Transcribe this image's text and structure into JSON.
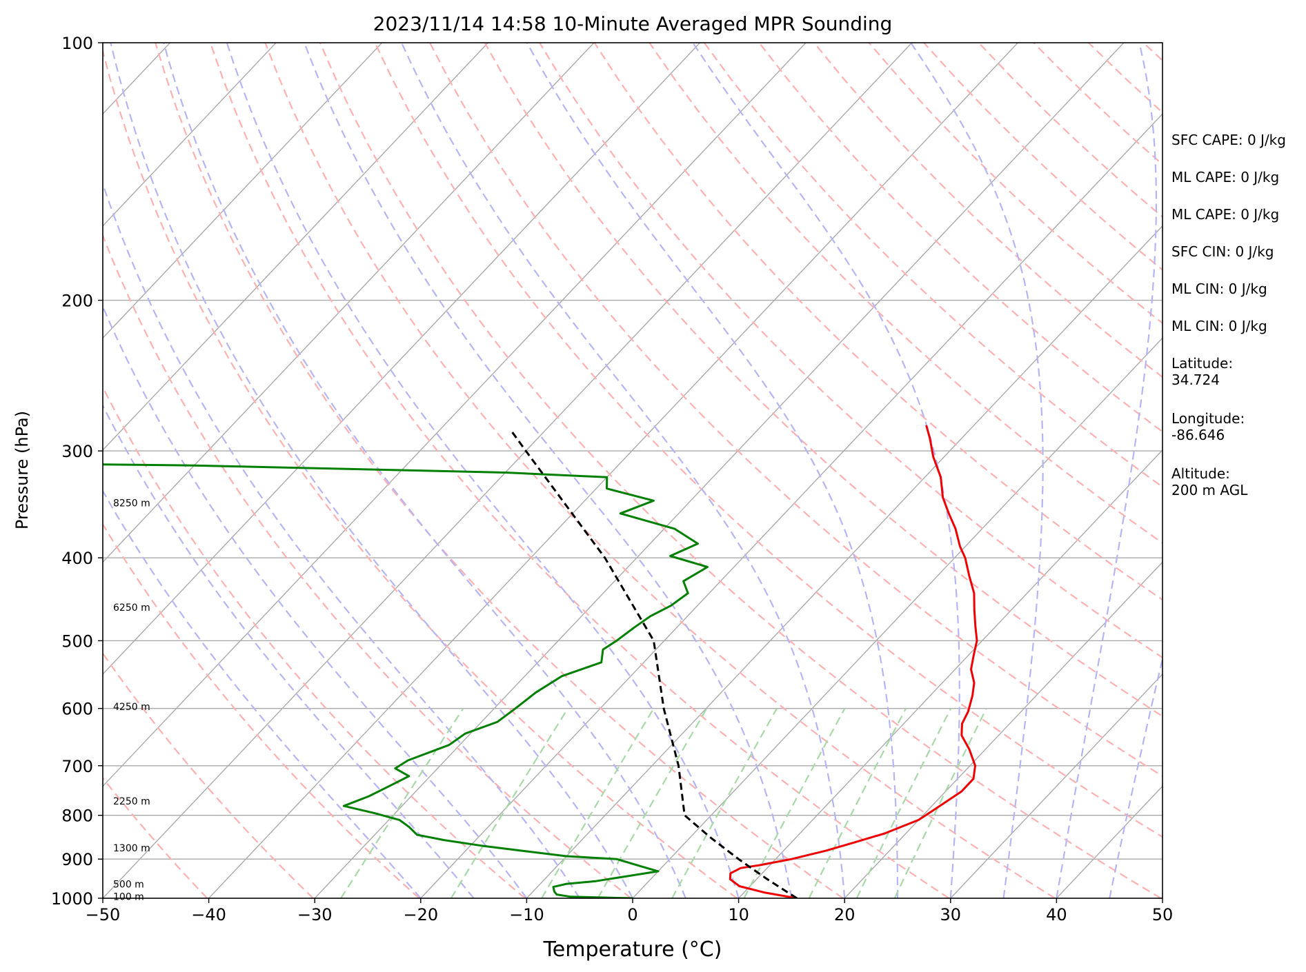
{
  "chart_data": {
    "type": "line",
    "title": "2023/11/14 14:58 10-Minute Averaged MPR Sounding",
    "xlabel": "Temperature (°C)",
    "ylabel": "Pressure (hPa)",
    "xlim": [
      -50,
      50
    ],
    "ylim": [
      1000,
      100
    ],
    "y_scale": "log",
    "skew": true,
    "grid": true,
    "x_ticks": [
      -50,
      -40,
      -30,
      -20,
      -10,
      0,
      10,
      20,
      30,
      40,
      50
    ],
    "x_tick_labels": [
      "−50",
      "−40",
      "−30",
      "−20",
      "−10",
      "0",
      "10",
      "20",
      "30",
      "40",
      "50"
    ],
    "y_ticks": [
      100,
      200,
      300,
      400,
      500,
      600,
      700,
      800,
      900,
      1000
    ],
    "y_tick_labels": [
      "100",
      "200",
      "300",
      "400",
      "500",
      "600",
      "700",
      "800",
      "900",
      "1000"
    ],
    "background_lines": {
      "isotherms_color": "#a9a9a9",
      "dry_adiabats_color": "#ffb0b0",
      "moist_adiabats_color": "#b5b5f5",
      "mixing_ratio_color": "#a8d8a8"
    },
    "series": [
      {
        "kind": "temperature",
        "color": "#ee0000",
        "points": [
          {
            "p": 1000,
            "t": 15.5
          },
          {
            "p": 985,
            "t": 12.0
          },
          {
            "p": 968,
            "t": 9.0
          },
          {
            "p": 950,
            "t": 7.5
          },
          {
            "p": 935,
            "t": 7.0
          },
          {
            "p": 922,
            "t": 7.5
          },
          {
            "p": 915,
            "t": 9.0
          },
          {
            "p": 900,
            "t": 11.5
          },
          {
            "p": 880,
            "t": 14.0
          },
          {
            "p": 860,
            "t": 16.0
          },
          {
            "p": 840,
            "t": 18.0
          },
          {
            "p": 810,
            "t": 20.0
          },
          {
            "p": 790,
            "t": 20.5
          },
          {
            "p": 770,
            "t": 21.0
          },
          {
            "p": 750,
            "t": 21.5
          },
          {
            "p": 725,
            "t": 21.5
          },
          {
            "p": 700,
            "t": 20.5
          },
          {
            "p": 670,
            "t": 18.5
          },
          {
            "p": 645,
            "t": 16.5
          },
          {
            "p": 625,
            "t": 15.5
          },
          {
            "p": 605,
            "t": 15.0
          },
          {
            "p": 580,
            "t": 14.0
          },
          {
            "p": 560,
            "t": 13.0
          },
          {
            "p": 540,
            "t": 11.5
          },
          {
            "p": 520,
            "t": 10.5
          },
          {
            "p": 500,
            "t": 9.5
          },
          {
            "p": 480,
            "t": 8.0
          },
          {
            "p": 460,
            "t": 6.5
          },
          {
            "p": 440,
            "t": 5.0
          },
          {
            "p": 420,
            "t": 3.0
          },
          {
            "p": 400,
            "t": 1.0
          },
          {
            "p": 388,
            "t": -0.5
          },
          {
            "p": 370,
            "t": -2.5
          },
          {
            "p": 355,
            "t": -4.5
          },
          {
            "p": 340,
            "t": -6.5
          },
          {
            "p": 322,
            "t": -8.5
          },
          {
            "p": 305,
            "t": -11.0
          },
          {
            "p": 290,
            "t": -13.0
          },
          {
            "p": 280,
            "t": -14.5
          }
        ]
      },
      {
        "kind": "dewpoint",
        "color": "#007f00",
        "points": [
          {
            "p": 1000,
            "t": 0.0
          },
          {
            "p": 996,
            "t": -6.0
          },
          {
            "p": 990,
            "t": -7.5
          },
          {
            "p": 982,
            "t": -8.0
          },
          {
            "p": 970,
            "t": -8.5
          },
          {
            "p": 962,
            "t": -7.5
          },
          {
            "p": 955,
            "t": -5.0
          },
          {
            "p": 945,
            "t": -3.0
          },
          {
            "p": 930,
            "t": 0.0
          },
          {
            "p": 918,
            "t": -2.0
          },
          {
            "p": 900,
            "t": -5.0
          },
          {
            "p": 893,
            "t": -10.0
          },
          {
            "p": 882,
            "t": -14.0
          },
          {
            "p": 868,
            "t": -19.0
          },
          {
            "p": 855,
            "t": -23.0
          },
          {
            "p": 843,
            "t": -26.0
          },
          {
            "p": 825,
            "t": -27.5
          },
          {
            "p": 810,
            "t": -29.0
          },
          {
            "p": 795,
            "t": -32.0
          },
          {
            "p": 780,
            "t": -35.5
          },
          {
            "p": 760,
            "t": -34.0
          },
          {
            "p": 740,
            "t": -33.0
          },
          {
            "p": 720,
            "t": -32.0
          },
          {
            "p": 705,
            "t": -34.0
          },
          {
            "p": 690,
            "t": -33.5
          },
          {
            "p": 662,
            "t": -31.0
          },
          {
            "p": 642,
            "t": -30.5
          },
          {
            "p": 622,
            "t": -28.5
          },
          {
            "p": 600,
            "t": -28.0
          },
          {
            "p": 575,
            "t": -27.5
          },
          {
            "p": 550,
            "t": -26.5
          },
          {
            "p": 530,
            "t": -24.0
          },
          {
            "p": 512,
            "t": -25.0
          },
          {
            "p": 500,
            "t": -24.5
          },
          {
            "p": 482,
            "t": -24.0
          },
          {
            "p": 468,
            "t": -23.5
          },
          {
            "p": 455,
            "t": -22.5
          },
          {
            "p": 440,
            "t": -22.0
          },
          {
            "p": 426,
            "t": -23.5
          },
          {
            "p": 410,
            "t": -22.5
          },
          {
            "p": 398,
            "t": -27.0
          },
          {
            "p": 385,
            "t": -25.5
          },
          {
            "p": 370,
            "t": -29.0
          },
          {
            "p": 355,
            "t": -35.5
          },
          {
            "p": 343,
            "t": -33.5
          },
          {
            "p": 332,
            "t": -39.0
          },
          {
            "p": 322,
            "t": -40.0
          },
          {
            "p": 318,
            "t": -50.0
          },
          {
            "p": 312,
            "t": -80.0
          },
          {
            "p": 310,
            "t": -100.0
          }
        ]
      },
      {
        "kind": "parcel",
        "color": "#000000",
        "dashed": true,
        "points": [
          {
            "p": 1000,
            "t": 15.5
          },
          {
            "p": 950,
            "t": 11.0
          },
          {
            "p": 900,
            "t": 6.5
          },
          {
            "p": 850,
            "t": 2.0
          },
          {
            "p": 800,
            "t": -2.5
          },
          {
            "p": 700,
            "t": -7.5
          },
          {
            "p": 600,
            "t": -14.0
          },
          {
            "p": 500,
            "t": -21.0
          },
          {
            "p": 400,
            "t": -33.0
          },
          {
            "p": 300,
            "t": -50.0
          },
          {
            "p": 285,
            "t": -53.0
          }
        ]
      }
    ],
    "height_labels": [
      {
        "label": "8250 m",
        "p": 345
      },
      {
        "label": "6250 m",
        "p": 457
      },
      {
        "label": "4250 m",
        "p": 597
      },
      {
        "label": "2250 m",
        "p": 770
      },
      {
        "label": "1300 m",
        "p": 873
      },
      {
        "label": "500 m",
        "p": 963
      },
      {
        "label": "100 m",
        "p": 995
      }
    ]
  },
  "info_panel": [
    "SFC CAPE: 0 J/kg",
    "ML CAPE: 0 J/kg",
    "ML CAPE: 0 J/kg",
    "SFC CIN: 0 J/kg",
    "ML CIN: 0 J/kg",
    "ML CIN: 0 J/kg",
    "Latitude:\n34.724",
    "Longitude:\n-86.646",
    "Altitude:\n200 m AGL"
  ]
}
